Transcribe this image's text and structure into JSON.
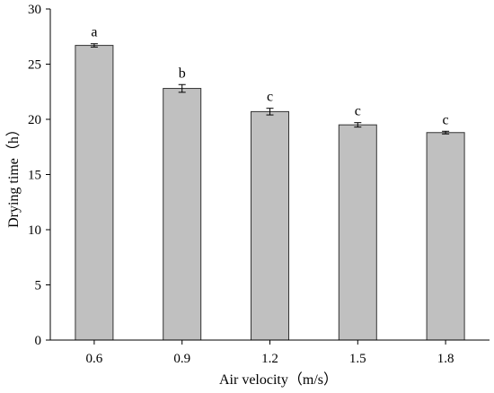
{
  "chart_data": {
    "type": "bar",
    "xlabel": "Air velocity（m/s）",
    "ylabel": "Drying time（h）",
    "categories": [
      "0.6",
      "0.9",
      "1.2",
      "1.5",
      "1.8"
    ],
    "values": [
      26.7,
      22.8,
      20.7,
      19.5,
      18.8
    ],
    "errors": [
      0.15,
      0.35,
      0.3,
      0.2,
      0.12
    ],
    "significance": [
      "a",
      "b",
      "c",
      "c",
      "c"
    ],
    "ylim": [
      0,
      30
    ],
    "yticks": [
      "0",
      "5",
      "10",
      "15",
      "20",
      "25",
      "30"
    ],
    "bar_color": "#c0c0c0",
    "grid": false
  }
}
